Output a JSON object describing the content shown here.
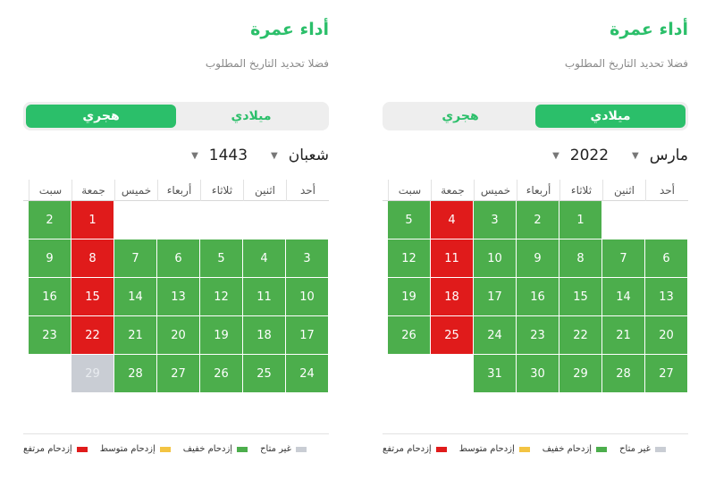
{
  "colors": {
    "accent": "#2bbf6a",
    "available_green": "#4cae4c",
    "busy_red": "#e01b1b",
    "light_yellow": "#f3c443",
    "unavailable_gray": "#c9cdd4"
  },
  "weekdays": [
    "أحد",
    "اثنين",
    "ثلاثاء",
    "أربعاء",
    "خميس",
    "جمعة",
    "سبت"
  ],
  "legend": [
    "غير متاح",
    "إزدحام خفيف",
    "إزدحام متوسط",
    "إزدحام مرتفع"
  ],
  "left_panel": {
    "title": "أداء عمرة",
    "subtitle": "فضلا تحديد التاريخ المطلوب",
    "tabs": {
      "gregorian": "ميلادي",
      "hijri": "هجري"
    },
    "active_tab": "hijri",
    "month": "شعبان",
    "year": "1443",
    "weeks": [
      [
        null,
        null,
        null,
        null,
        null,
        {
          "d": "1",
          "s": "r"
        },
        {
          "d": "2",
          "s": "g"
        }
      ],
      [
        {
          "d": "3",
          "s": "g"
        },
        {
          "d": "4",
          "s": "g"
        },
        {
          "d": "5",
          "s": "g"
        },
        {
          "d": "6",
          "s": "g"
        },
        {
          "d": "7",
          "s": "g"
        },
        {
          "d": "8",
          "s": "r"
        },
        {
          "d": "9",
          "s": "g"
        }
      ],
      [
        {
          "d": "10",
          "s": "g"
        },
        {
          "d": "11",
          "s": "g"
        },
        {
          "d": "12",
          "s": "g"
        },
        {
          "d": "13",
          "s": "g"
        },
        {
          "d": "14",
          "s": "g"
        },
        {
          "d": "15",
          "s": "r"
        },
        {
          "d": "16",
          "s": "g"
        }
      ],
      [
        {
          "d": "17",
          "s": "g"
        },
        {
          "d": "18",
          "s": "g"
        },
        {
          "d": "19",
          "s": "g"
        },
        {
          "d": "20",
          "s": "g"
        },
        {
          "d": "21",
          "s": "g"
        },
        {
          "d": "22",
          "s": "r"
        },
        {
          "d": "23",
          "s": "g"
        }
      ],
      [
        {
          "d": "24",
          "s": "g"
        },
        {
          "d": "25",
          "s": "g"
        },
        {
          "d": "26",
          "s": "g"
        },
        {
          "d": "27",
          "s": "g"
        },
        {
          "d": "28",
          "s": "g"
        },
        {
          "d": "29",
          "s": "n"
        },
        null
      ]
    ]
  },
  "right_panel": {
    "title": "أداء عمرة",
    "subtitle": "فضلا تحديد التاريخ المطلوب",
    "tabs": {
      "gregorian": "ميلادي",
      "hijri": "هجري"
    },
    "active_tab": "gregorian",
    "month": "مارس",
    "year": "2022",
    "weeks": [
      [
        null,
        null,
        {
          "d": "1",
          "s": "g"
        },
        {
          "d": "2",
          "s": "g"
        },
        {
          "d": "3",
          "s": "g"
        },
        {
          "d": "4",
          "s": "r"
        },
        {
          "d": "5",
          "s": "g"
        }
      ],
      [
        {
          "d": "6",
          "s": "g"
        },
        {
          "d": "7",
          "s": "g"
        },
        {
          "d": "8",
          "s": "g"
        },
        {
          "d": "9",
          "s": "g"
        },
        {
          "d": "10",
          "s": "g"
        },
        {
          "d": "11",
          "s": "r"
        },
        {
          "d": "12",
          "s": "g"
        }
      ],
      [
        {
          "d": "13",
          "s": "g"
        },
        {
          "d": "14",
          "s": "g"
        },
        {
          "d": "15",
          "s": "g"
        },
        {
          "d": "16",
          "s": "g"
        },
        {
          "d": "17",
          "s": "g"
        },
        {
          "d": "18",
          "s": "r"
        },
        {
          "d": "19",
          "s": "g"
        }
      ],
      [
        {
          "d": "20",
          "s": "g"
        },
        {
          "d": "21",
          "s": "g"
        },
        {
          "d": "22",
          "s": "g"
        },
        {
          "d": "23",
          "s": "g"
        },
        {
          "d": "24",
          "s": "g"
        },
        {
          "d": "25",
          "s": "r"
        },
        {
          "d": "26",
          "s": "g"
        }
      ],
      [
        {
          "d": "27",
          "s": "g"
        },
        {
          "d": "28",
          "s": "g"
        },
        {
          "d": "29",
          "s": "g"
        },
        {
          "d": "30",
          "s": "g"
        },
        {
          "d": "31",
          "s": "g"
        },
        null,
        null
      ]
    ]
  }
}
